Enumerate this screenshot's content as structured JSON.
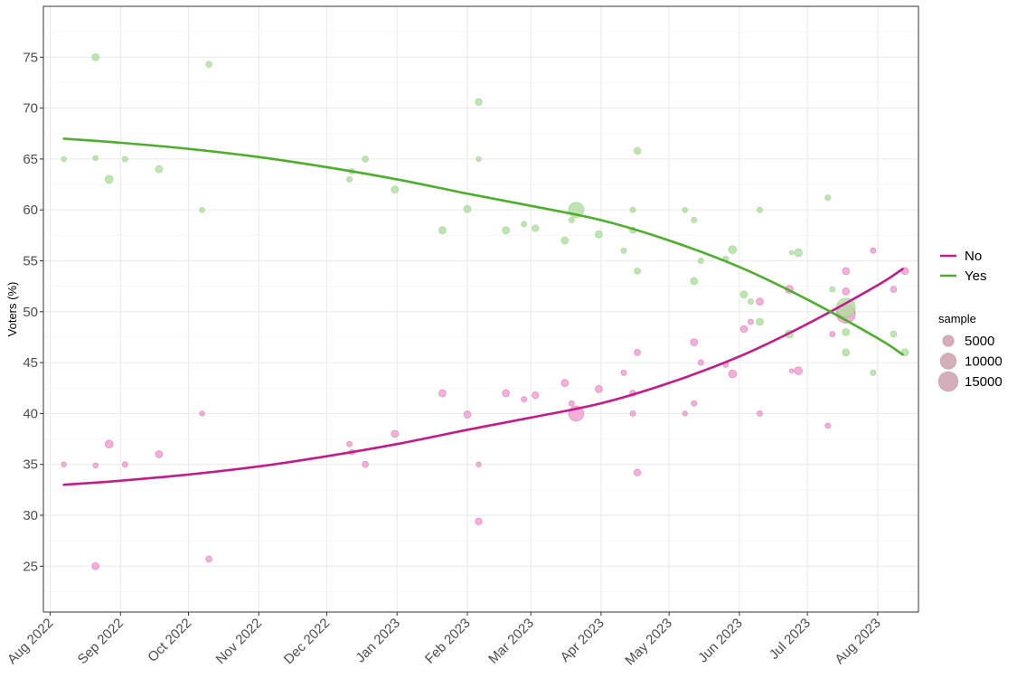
{
  "chart_data": {
    "type": "scatter",
    "title": "",
    "xlabel": "",
    "ylabel": "Voters (%)",
    "ylim": [
      20.5,
      80
    ],
    "xlim": [
      "2022-07-29",
      "2023-08-19"
    ],
    "y_ticks": [
      25,
      30,
      35,
      40,
      45,
      50,
      55,
      60,
      65,
      70,
      75
    ],
    "x_ticks": [
      {
        "date": "2022-08-01",
        "label": "Aug 2022"
      },
      {
        "date": "2022-09-01",
        "label": "Sep 2022"
      },
      {
        "date": "2022-10-01",
        "label": "Oct 2022"
      },
      {
        "date": "2022-11-01",
        "label": "Nov 2022"
      },
      {
        "date": "2022-12-01",
        "label": "Dec 2022"
      },
      {
        "date": "2023-01-01",
        "label": "Jan 2023"
      },
      {
        "date": "2023-02-01",
        "label": "Feb 2023"
      },
      {
        "date": "2023-03-01",
        "label": "Mar 2023"
      },
      {
        "date": "2023-04-01",
        "label": "Apr 2023"
      },
      {
        "date": "2023-05-01",
        "label": "May 2023"
      },
      {
        "date": "2023-06-01",
        "label": "Jun 2023"
      },
      {
        "date": "2023-07-01",
        "label": "Jul 2023"
      },
      {
        "date": "2023-08-01",
        "label": "Aug 2023"
      }
    ],
    "grid": true,
    "legend_position": "right",
    "colors": {
      "No": "#c51b8a",
      "Yes": "#4daf2c",
      "No_point": "#f09ccf",
      "Yes_point": "#b0dea0",
      "size_legend": "#c99aa6"
    },
    "series": [
      {
        "name": "No",
        "trend": [
          [
            "2022-08-07",
            33.0
          ],
          [
            "2022-09-01",
            33.4
          ],
          [
            "2022-10-01",
            34.0
          ],
          [
            "2022-11-01",
            34.8
          ],
          [
            "2022-12-01",
            35.8
          ],
          [
            "2023-01-01",
            37.0
          ],
          [
            "2023-02-01",
            38.4
          ],
          [
            "2023-03-01",
            39.6
          ],
          [
            "2023-04-01",
            41.0
          ],
          [
            "2023-05-01",
            43.0
          ],
          [
            "2023-06-01",
            45.6
          ],
          [
            "2023-07-01",
            48.8
          ],
          [
            "2023-08-01",
            52.6
          ],
          [
            "2023-08-12",
            54.2
          ]
        ],
        "points": [
          [
            "2022-08-07",
            35,
            1000
          ],
          [
            "2022-08-21",
            34.9,
            1000
          ],
          [
            "2022-08-21",
            25,
            2000
          ],
          [
            "2022-08-27",
            37,
            2500
          ],
          [
            "2022-09-03",
            35,
            1200
          ],
          [
            "2022-09-18",
            36,
            2000
          ],
          [
            "2022-10-07",
            40,
            1000
          ],
          [
            "2022-10-10",
            25.7,
            1500
          ],
          [
            "2022-12-11",
            37,
            1200
          ],
          [
            "2022-12-12",
            36.2,
            1200
          ],
          [
            "2022-12-18",
            35,
            1500
          ],
          [
            "2022-12-31",
            38,
            2000
          ],
          [
            "2023-01-21",
            42,
            2000
          ],
          [
            "2023-02-01",
            39.9,
            2000
          ],
          [
            "2023-02-06",
            35,
            1000
          ],
          [
            "2023-02-06",
            29.4,
            1800
          ],
          [
            "2023-02-18",
            42,
            2000
          ],
          [
            "2023-02-26",
            41.4,
            1200
          ],
          [
            "2023-03-03",
            41.8,
            1800
          ],
          [
            "2023-03-16",
            43,
            2000
          ],
          [
            "2023-03-19",
            41,
            1200
          ],
          [
            "2023-03-21",
            40,
            9000
          ],
          [
            "2023-03-31",
            42.4,
            2000
          ],
          [
            "2023-04-11",
            44,
            1200
          ],
          [
            "2023-04-15",
            42,
            1500
          ],
          [
            "2023-04-15",
            40,
            1200
          ],
          [
            "2023-04-17",
            46,
            1500
          ],
          [
            "2023-04-17",
            34.2,
            1800
          ],
          [
            "2023-05-08",
            40,
            1000
          ],
          [
            "2023-05-12",
            47,
            2000
          ],
          [
            "2023-05-12",
            41,
            1200
          ],
          [
            "2023-05-15",
            45,
            1200
          ],
          [
            "2023-05-26",
            44.8,
            1200
          ],
          [
            "2023-05-29",
            43.9,
            2500
          ],
          [
            "2023-06-03",
            48.3,
            2000
          ],
          [
            "2023-06-06",
            49,
            1200
          ],
          [
            "2023-06-10",
            51,
            2000
          ],
          [
            "2023-06-10",
            40,
            1200
          ],
          [
            "2023-06-23",
            52.2,
            2500
          ],
          [
            "2023-06-24",
            44.2,
            600
          ],
          [
            "2023-06-27",
            44.2,
            2500
          ],
          [
            "2023-07-10",
            38.8,
            1200
          ],
          [
            "2023-07-12",
            47.8,
            1200
          ],
          [
            "2023-07-18",
            49.8,
            14000
          ],
          [
            "2023-07-18",
            54,
            2000
          ],
          [
            "2023-07-18",
            52,
            2000
          ],
          [
            "2023-07-30",
            56,
            1200
          ],
          [
            "2023-08-08",
            52.2,
            1500
          ],
          [
            "2023-08-13",
            54,
            2000
          ]
        ]
      },
      {
        "name": "Yes",
        "trend": [
          [
            "2022-08-07",
            67.0
          ],
          [
            "2022-09-01",
            66.6
          ],
          [
            "2022-10-01",
            66.0
          ],
          [
            "2022-11-01",
            65.2
          ],
          [
            "2022-12-01",
            64.2
          ],
          [
            "2023-01-01",
            63.0
          ],
          [
            "2023-02-01",
            61.6
          ],
          [
            "2023-03-01",
            60.4
          ],
          [
            "2023-04-01",
            59.0
          ],
          [
            "2023-05-01",
            57.0
          ],
          [
            "2023-06-01",
            54.4
          ],
          [
            "2023-07-01",
            51.2
          ],
          [
            "2023-08-01",
            47.4
          ],
          [
            "2023-08-12",
            45.8
          ]
        ],
        "points": [
          [
            "2022-08-07",
            65,
            1000
          ],
          [
            "2022-08-21",
            65.1,
            1000
          ],
          [
            "2022-08-21",
            75,
            2000
          ],
          [
            "2022-08-27",
            63,
            2500
          ],
          [
            "2022-09-03",
            65,
            1200
          ],
          [
            "2022-09-18",
            64,
            2000
          ],
          [
            "2022-10-07",
            60,
            1000
          ],
          [
            "2022-10-10",
            74.3,
            1500
          ],
          [
            "2022-12-11",
            63,
            1200
          ],
          [
            "2022-12-12",
            63.8,
            1200
          ],
          [
            "2022-12-18",
            65,
            1500
          ],
          [
            "2022-12-31",
            62,
            2000
          ],
          [
            "2023-01-21",
            58,
            2000
          ],
          [
            "2023-02-01",
            60.1,
            2000
          ],
          [
            "2023-02-06",
            65,
            1000
          ],
          [
            "2023-02-06",
            70.6,
            1800
          ],
          [
            "2023-02-18",
            58,
            2000
          ],
          [
            "2023-02-26",
            58.6,
            1200
          ],
          [
            "2023-03-03",
            58.2,
            1800
          ],
          [
            "2023-03-16",
            57,
            2000
          ],
          [
            "2023-03-19",
            59,
            1200
          ],
          [
            "2023-03-21",
            60,
            9000
          ],
          [
            "2023-03-31",
            57.6,
            2000
          ],
          [
            "2023-04-11",
            56,
            1200
          ],
          [
            "2023-04-15",
            58,
            1500
          ],
          [
            "2023-04-15",
            60,
            1200
          ],
          [
            "2023-04-17",
            54,
            1500
          ],
          [
            "2023-04-17",
            65.8,
            1800
          ],
          [
            "2023-05-08",
            60,
            1000
          ],
          [
            "2023-05-12",
            53,
            2000
          ],
          [
            "2023-05-12",
            59,
            1200
          ],
          [
            "2023-05-15",
            55,
            1200
          ],
          [
            "2023-05-26",
            55.2,
            1200
          ],
          [
            "2023-05-29",
            56.1,
            2500
          ],
          [
            "2023-06-03",
            51.7,
            2000
          ],
          [
            "2023-06-06",
            51,
            1200
          ],
          [
            "2023-06-10",
            49,
            2000
          ],
          [
            "2023-06-10",
            60,
            1200
          ],
          [
            "2023-06-23",
            47.8,
            2500
          ],
          [
            "2023-06-24",
            55.8,
            600
          ],
          [
            "2023-06-27",
            55.8,
            2500
          ],
          [
            "2023-07-10",
            61.2,
            1200
          ],
          [
            "2023-07-12",
            52.2,
            1200
          ],
          [
            "2023-07-18",
            50.4,
            14000
          ],
          [
            "2023-07-18",
            46,
            2000
          ],
          [
            "2023-07-18",
            48,
            2000
          ],
          [
            "2023-07-30",
            44,
            1200
          ],
          [
            "2023-08-08",
            47.8,
            1500
          ],
          [
            "2023-08-13",
            46,
            2000
          ]
        ]
      }
    ],
    "size_legend": {
      "title": "sample",
      "values": [
        5000,
        10000,
        15000
      ]
    }
  }
}
